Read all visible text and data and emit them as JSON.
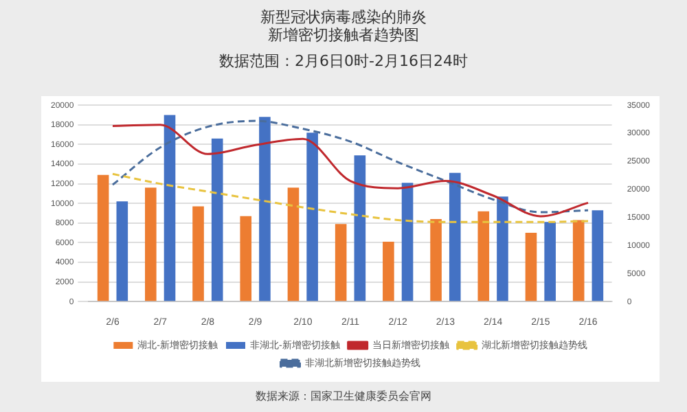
{
  "chart_data": {
    "type": "bar",
    "title": "新型冠状病毒感染的肺炎新增密切接触者趋势图",
    "subtitle": "数据范围：2月6日0时-2月16日24时",
    "annotations": [
      "数据来源：国家卫生健康委员会官网"
    ],
    "categories": [
      "2/6",
      "2/7",
      "2/8",
      "2/9",
      "2/10",
      "2/11",
      "2/12",
      "2/13",
      "2/14",
      "2/15",
      "2/16"
    ],
    "series": [
      {
        "name": "湖北-新增密切接触",
        "color": "#ed7d31",
        "values": [
          12900,
          11600,
          9700,
          8700,
          11600,
          7900,
          6100,
          8400,
          9200,
          7000,
          8300
        ]
      },
      {
        "name": "非湖北-新增密切接触",
        "color": "#4472c4",
        "values": [
          10200,
          19000,
          16600,
          18800,
          17200,
          14900,
          12100,
          13100,
          10700,
          8100,
          9300
        ]
      },
      {
        "name": "当日新增密切接触",
        "type": "line",
        "axis": "y2",
        "color": "#c0282d",
        "line_style": "solid",
        "values": [
          31300,
          31500,
          26300,
          27900,
          29000,
          21500,
          20200,
          21500,
          18900,
          15200,
          17600
        ]
      },
      {
        "name": "湖北新增密切接触趋势线",
        "type": "line",
        "color": "#e8c33f",
        "line_style": "dashed",
        "values": [
          13000,
          12000,
          11200,
          10400,
          9600,
          8900,
          8300,
          8100,
          8100,
          8100,
          8200
        ]
      },
      {
        "name": "非湖北新增密切接触趋势线",
        "type": "line",
        "color": "#4a6d9c",
        "line_style": "dashed",
        "values": [
          11900,
          15700,
          17800,
          18400,
          17600,
          16300,
          14200,
          12300,
          10400,
          9100,
          9300
        ]
      }
    ],
    "ylim": [
      0,
      20000
    ],
    "yticks": [
      0,
      2000,
      4000,
      6000,
      8000,
      10000,
      12000,
      14000,
      16000,
      18000,
      20000
    ],
    "y2lim": [
      0,
      35000
    ],
    "y2ticks": [
      0,
      5000,
      10000,
      15000,
      20000,
      25000,
      30000,
      35000
    ],
    "grid": "y",
    "legend": "bottom",
    "marker": "none"
  }
}
